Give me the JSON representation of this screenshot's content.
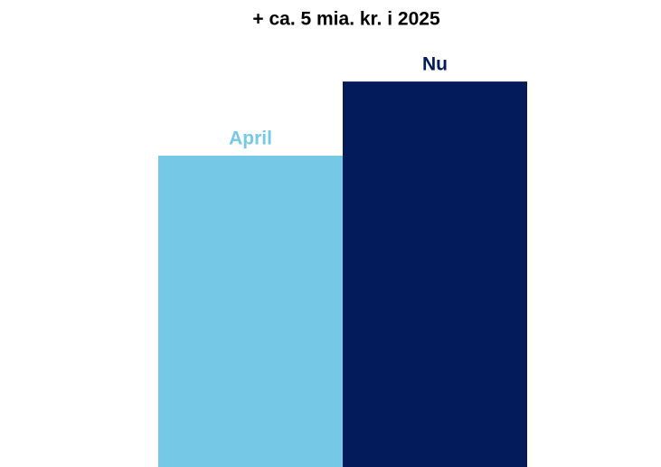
{
  "chart_data": {
    "type": "bar",
    "title": "+ ca. 5 mia. kr. i 2025",
    "categories": [
      "April",
      "Nu"
    ],
    "values": [
      21,
      26
    ],
    "colors": [
      "#75c8e6",
      "#031b5a"
    ],
    "ylim": [
      0,
      31.5
    ]
  }
}
